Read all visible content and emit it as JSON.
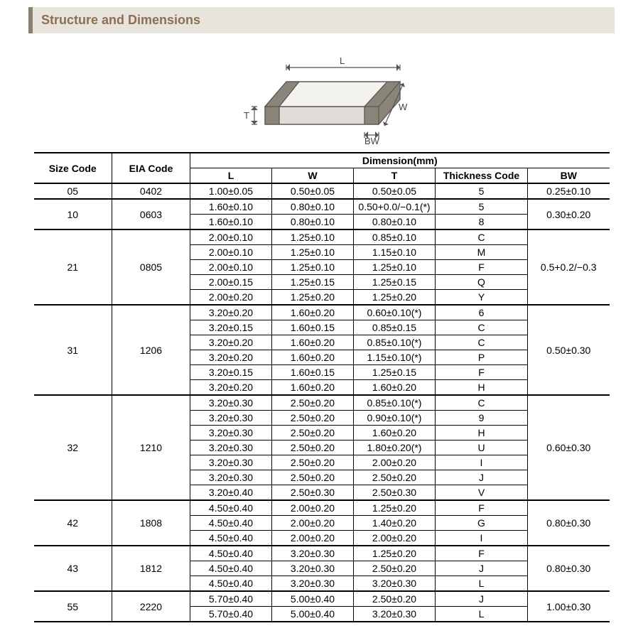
{
  "header": {
    "title": "Structure and Dimensions"
  },
  "diagram": {
    "labels": {
      "L": "L",
      "W": "W",
      "T": "T",
      "BW": "BW"
    },
    "stroke": "#555555",
    "fill_top": "#f4f2ee",
    "fill_front": "#e0ddd6",
    "fill_side": "#c8c4bb",
    "band_color": "#8a8578"
  },
  "table": {
    "header_main": "Dimension(mm)",
    "cols": {
      "size": "Size Code",
      "eia": "EIA Code",
      "L": "L",
      "W": "W",
      "T": "T",
      "tc": "Thickness  Code",
      "bw": "BW"
    },
    "groups": [
      {
        "size": "05",
        "eia": "0402",
        "bw": "0.25±0.10",
        "rows": [
          [
            "1.00±0.05",
            "0.50±0.05",
            "0.50±0.05",
            "5"
          ]
        ]
      },
      {
        "size": "10",
        "eia": "0603",
        "bw": "0.30±0.20",
        "rows": [
          [
            "1.60±0.10",
            "0.80±0.10",
            "0.50+0.0/−0.1(*)",
            "5"
          ],
          [
            "1.60±0.10",
            "0.80±0.10",
            "0.80±0.10",
            "8"
          ]
        ]
      },
      {
        "size": "21",
        "eia": "0805",
        "bw": "0.5+0.2/−0.3",
        "rows": [
          [
            "2.00±0.10",
            "1.25±0.10",
            "0.85±0.10",
            "C"
          ],
          [
            "2.00±0.10",
            "1.25±0.10",
            "1.15±0.10",
            "M"
          ],
          [
            "2.00±0.10",
            "1.25±0.10",
            "1.25±0.10",
            "F"
          ],
          [
            "2.00±0.15",
            "1.25±0.15",
            "1.25±0.15",
            "Q"
          ],
          [
            "2.00±0.20",
            "1.25±0.20",
            "1.25±0.20",
            "Y"
          ]
        ]
      },
      {
        "size": "31",
        "eia": "1206",
        "bw": "0.50±0.30",
        "rows": [
          [
            "3.20±0.20",
            "1.60±0.20",
            "0.60±0.10(*)",
            "6"
          ],
          [
            "3.20±0.15",
            "1.60±0.15",
            "0.85±0.15",
            "C"
          ],
          [
            "3.20±0.20",
            "1.60±0.20",
            "0.85±0.10(*)",
            "C"
          ],
          [
            "3.20±0.20",
            "1.60±0.20",
            "1.15±0.10(*)",
            "P"
          ],
          [
            "3.20±0.15",
            "1.60±0.15",
            "1.25±0.15",
            "F"
          ],
          [
            "3.20±0.20",
            "1.60±0.20",
            "1.60±0.20",
            "H"
          ]
        ]
      },
      {
        "size": "32",
        "eia": "1210",
        "bw": "0.60±0.30",
        "rows": [
          [
            "3.20±0.30",
            "2.50±0.20",
            "0.85±0.10(*)",
            "C"
          ],
          [
            "3.20±0.30",
            "2.50±0.20",
            "0.90±0.10(*)",
            "9"
          ],
          [
            "3.20±0.30",
            "2.50±0.20",
            "1.60±0.20",
            "H"
          ],
          [
            "3.20±0.30",
            "2.50±0.20",
            "1.80±0.20(*)",
            "U"
          ],
          [
            "3.20±0.30",
            "2.50±0.20",
            "2.00±0.20",
            "I"
          ],
          [
            "3.20±0.30",
            "2.50±0.20",
            "2.50±0.20",
            "J"
          ],
          [
            "3.20±0.40",
            "2.50±0.30",
            "2.50±0.30",
            "V"
          ]
        ]
      },
      {
        "size": "42",
        "eia": "1808",
        "bw": "0.80±0.30",
        "rows": [
          [
            "4.50±0.40",
            "2.00±0.20",
            "1.25±0.20",
            "F"
          ],
          [
            "4.50±0.40",
            "2.00±0.20",
            "1.40±0.20",
            "G"
          ],
          [
            "4.50±0.40",
            "2.00±0.20",
            "2.00±0.20",
            "I"
          ]
        ]
      },
      {
        "size": "43",
        "eia": "1812",
        "bw": "0.80±0.30",
        "rows": [
          [
            "4.50±0.40",
            "3.20±0.30",
            "1.25±0.20",
            "F"
          ],
          [
            "4.50±0.40",
            "3.20±0.30",
            "2.50±0.20",
            "J"
          ],
          [
            "4.50±0.40",
            "3.20±0.30",
            "3.20±0.30",
            "L"
          ]
        ]
      },
      {
        "size": "55",
        "eia": "2220",
        "bw": "1.00±0.30",
        "rows": [
          [
            "5.70±0.40",
            "5.00±0.40",
            "2.50±0.20",
            "J"
          ],
          [
            "5.70±0.40",
            "5.00±0.40",
            "3.20±0.30",
            "L"
          ]
        ]
      }
    ]
  }
}
